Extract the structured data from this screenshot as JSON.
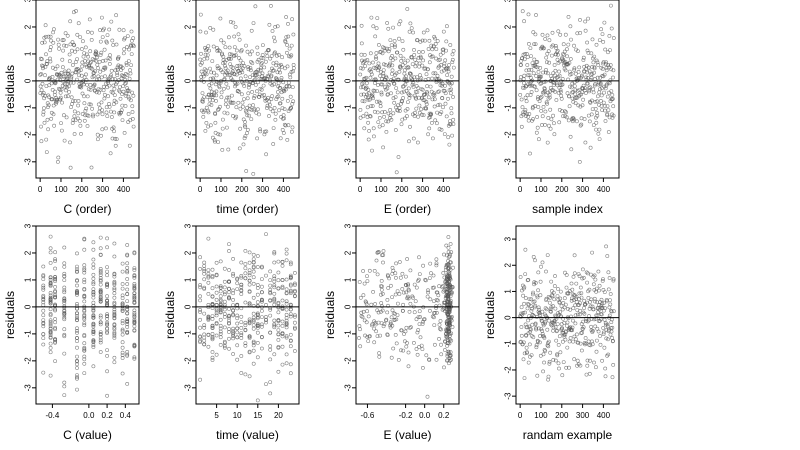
{
  "chart_data": [
    {
      "type": "scatter",
      "panel": "row1-col1",
      "xlabel": "C (order)",
      "ylabel": "residuals",
      "xlim": [
        -20,
        475
      ],
      "ylim": [
        -3.6,
        3.0
      ],
      "x_ticks": [
        0,
        100,
        200,
        300,
        400
      ],
      "y_ticks": [
        -3,
        -2,
        -1,
        0,
        1,
        2,
        3
      ],
      "reference_line_y": 0,
      "n_points": 450,
      "x_range": [
        0,
        450
      ],
      "y_range": [
        -3.5,
        2.8
      ],
      "pattern": "uniform"
    },
    {
      "type": "scatter",
      "panel": "row1-col2",
      "xlabel": "time (order)",
      "ylabel": "residuals",
      "xlim": [
        -20,
        475
      ],
      "ylim": [
        -3.6,
        3.0
      ],
      "x_ticks": [
        0,
        100,
        200,
        300,
        400
      ],
      "y_ticks": [
        -3,
        -2,
        -1,
        0,
        1,
        2,
        3
      ],
      "reference_line_y": 0,
      "n_points": 450,
      "x_range": [
        0,
        450
      ],
      "y_range": [
        -3.5,
        2.8
      ],
      "pattern": "uniform"
    },
    {
      "type": "scatter",
      "panel": "row1-col3",
      "xlabel": "E (order)",
      "ylabel": "residuals",
      "xlim": [
        -20,
        475
      ],
      "ylim": [
        -3.6,
        3.0
      ],
      "x_ticks": [
        0,
        100,
        200,
        300,
        400
      ],
      "y_ticks": [
        -3,
        -2,
        -1,
        0,
        1,
        2,
        3
      ],
      "reference_line_y": 0,
      "n_points": 450,
      "x_range": [
        0,
        450
      ],
      "y_range": [
        -3.5,
        2.8
      ],
      "pattern": "uniform"
    },
    {
      "type": "scatter",
      "panel": "row1-col4",
      "xlabel": "sample index",
      "ylabel": "residuals",
      "xlim": [
        -20,
        475
      ],
      "ylim": [
        -3.6,
        3.0
      ],
      "x_ticks": [
        0,
        100,
        200,
        300,
        400
      ],
      "y_ticks": [
        -3,
        -2,
        -1,
        0,
        1,
        2,
        3
      ],
      "reference_line_y": 0,
      "n_points": 450,
      "x_range": [
        0,
        450
      ],
      "y_range": [
        -3.5,
        2.8
      ],
      "pattern": "uniform"
    },
    {
      "type": "scatter",
      "panel": "row2-col1",
      "xlabel": "C (value)",
      "ylabel": "residuals",
      "xlim": [
        -0.58,
        0.55
      ],
      "ylim": [
        -3.6,
        3.0
      ],
      "x_ticks": [
        -0.4,
        0.0,
        0.2,
        0.4
      ],
      "x_tick_labels": [
        "-0.4",
        "0.0",
        "0.2",
        "0.4"
      ],
      "y_ticks": [
        -3,
        -2,
        -1,
        0,
        1,
        2,
        3
      ],
      "reference_line_y": 0,
      "n_points": 450,
      "x_range": [
        -0.5,
        0.5
      ],
      "y_range": [
        -3.5,
        2.8
      ],
      "pattern": "discrete",
      "x_levels": [
        -0.5,
        -0.42,
        -0.37,
        -0.27,
        -0.13,
        -0.05,
        0.05,
        0.13,
        0.2,
        0.28,
        0.37,
        0.42,
        0.5
      ]
    },
    {
      "type": "scatter",
      "panel": "row2-col2",
      "xlabel": "time (value)",
      "ylabel": "residuals",
      "xlim": [
        0,
        25
      ],
      "ylim": [
        -3.6,
        3.0
      ],
      "x_ticks": [
        5,
        10,
        15,
        20
      ],
      "y_ticks": [
        -3,
        -2,
        -1,
        0,
        1,
        2,
        3
      ],
      "reference_line_y": 0,
      "n_points": 450,
      "x_range": [
        1,
        24
      ],
      "y_range": [
        -3.5,
        2.8
      ],
      "pattern": "discrete",
      "x_levels": [
        1,
        2,
        3,
        4,
        5,
        6,
        7,
        8,
        9,
        10,
        11,
        12,
        13,
        14,
        15,
        16,
        17,
        18,
        19,
        20,
        21,
        22,
        23,
        24
      ]
    },
    {
      "type": "scatter",
      "panel": "row2-col3",
      "xlabel": "E (value)",
      "ylabel": "residuals",
      "xlim": [
        -0.72,
        0.36
      ],
      "ylim": [
        -3.6,
        3.0
      ],
      "x_ticks": [
        -0.6,
        -0.2,
        0.0,
        0.2
      ],
      "x_tick_labels": [
        "-0.6",
        "-0.2",
        "0.0",
        "0.2"
      ],
      "y_ticks": [
        -3,
        -2,
        -1,
        0,
        1,
        2,
        3
      ],
      "reference_line_y": 0,
      "n_points": 450,
      "x_range": [
        -0.7,
        0.3
      ],
      "y_range": [
        -3.5,
        2.8
      ],
      "pattern": "clustered",
      "cluster_x": 0.25
    },
    {
      "type": "scatter",
      "panel": "row2-col4",
      "xlabel": "randam example",
      "ylabel": "residuals",
      "xlim": [
        -20,
        475
      ],
      "ylim": [
        -3.3,
        3.5
      ],
      "x_ticks": [
        0,
        100,
        200,
        300,
        400
      ],
      "y_ticks": [
        -3,
        -2,
        -1,
        0,
        1,
        2,
        3
      ],
      "reference_line_y": 0,
      "n_points": 450,
      "x_range": [
        0,
        450
      ],
      "y_range": [
        -2.5,
        3.2
      ],
      "pattern": "uniform"
    }
  ]
}
